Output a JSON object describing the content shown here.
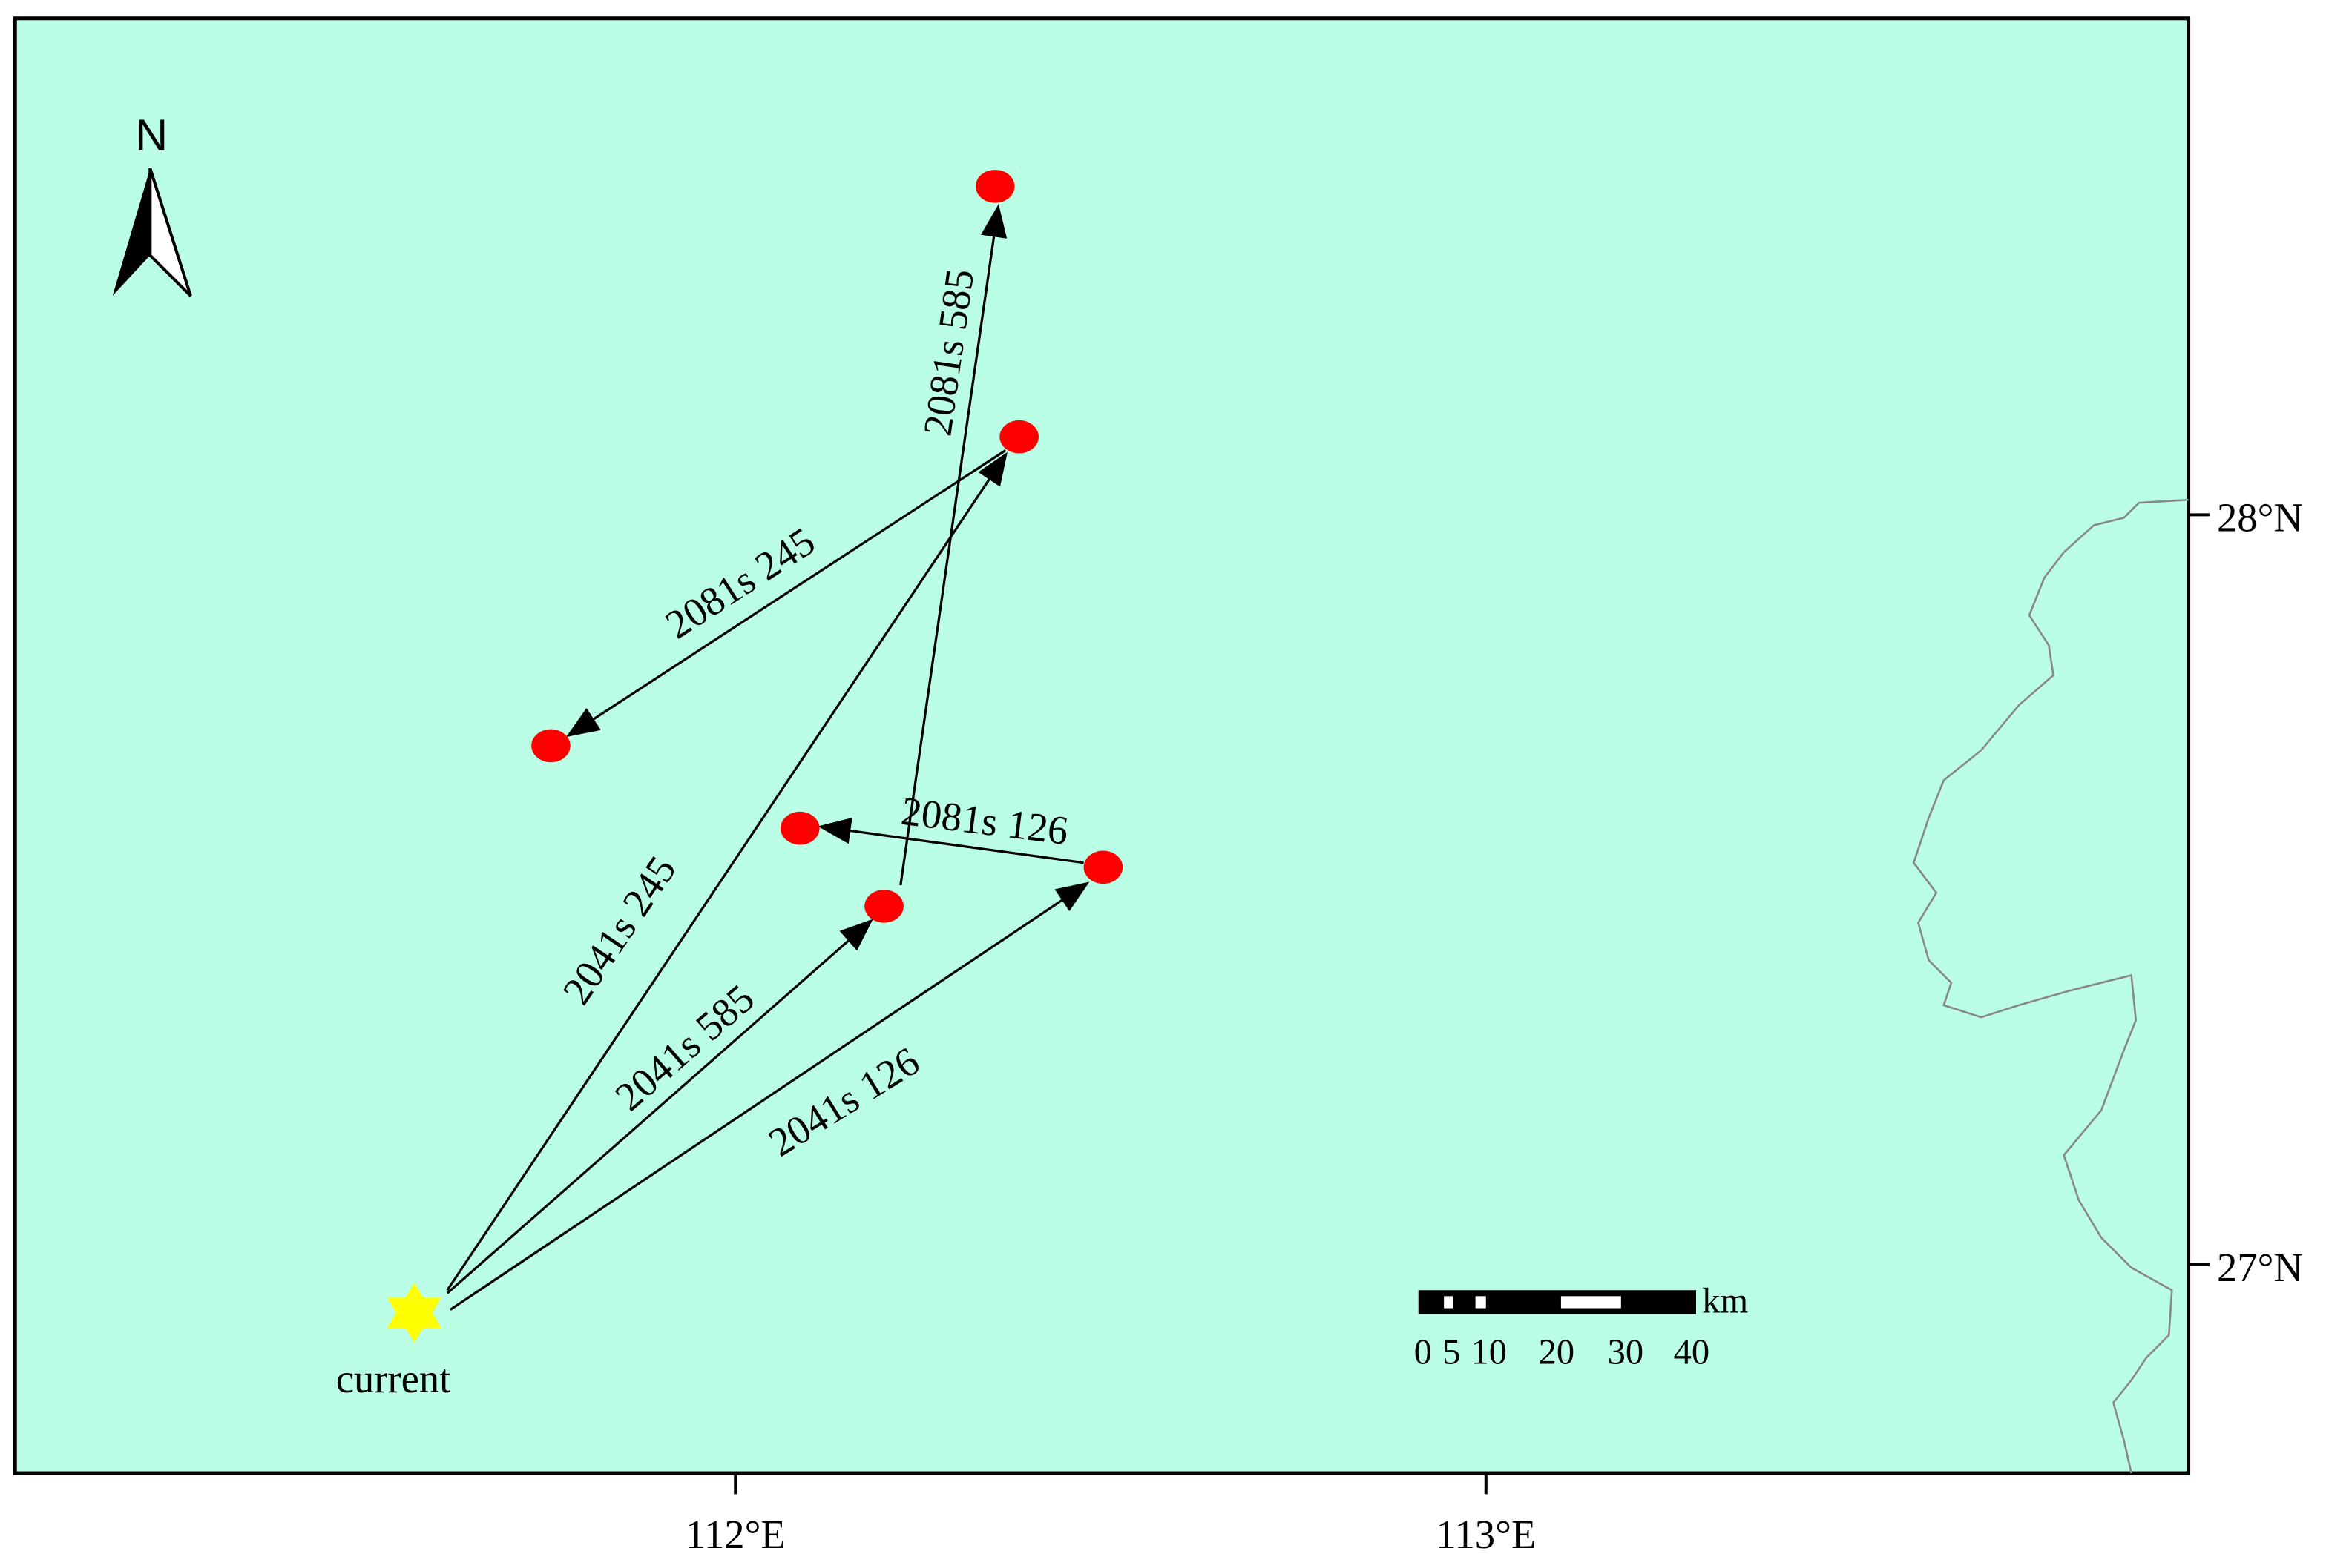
{
  "north_label": "N",
  "lat_labels": [
    "28°N",
    "27°N"
  ],
  "lon_labels": [
    "112°E",
    "113°E"
  ],
  "scale_bar": {
    "unit": "km",
    "labels": [
      "0",
      "5",
      "10",
      "20",
      "30",
      "40"
    ]
  },
  "origin_label": "current",
  "arrows": [
    {
      "label": "2041s 245"
    },
    {
      "label": "2041s 585"
    },
    {
      "label": "2041s 126"
    },
    {
      "label": "2081s 585"
    },
    {
      "label": "2081s 245"
    },
    {
      "label": "2081s 126"
    }
  ]
}
